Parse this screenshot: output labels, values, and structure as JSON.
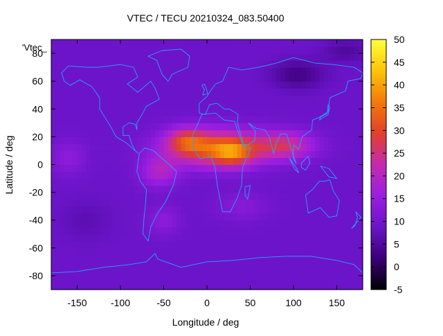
{
  "chart_data": {
    "type": "heatmap",
    "title": "VTEC / TECU 20210324_083.50400",
    "xlabel": "Longitude / deg",
    "ylabel": "Latitude / deg",
    "overlay_label": "'Vtec_",
    "xlim": [
      -180,
      180
    ],
    "ylim": [
      -90,
      90
    ],
    "xticks": [
      -150,
      -100,
      -50,
      0,
      50,
      100,
      150
    ],
    "yticks": [
      -80,
      -60,
      -40,
      -20,
      0,
      20,
      40,
      60,
      80
    ],
    "colorbar": {
      "range": [
        -5,
        50
      ],
      "ticks": [
        50,
        45,
        40,
        35,
        30,
        25,
        20,
        15,
        10,
        5,
        0,
        -5
      ],
      "palette": [
        "#000000",
        "#3a0078",
        "#6a14c8",
        "#9a1ee0",
        "#c42ab0",
        "#e0402a",
        "#f27a0a",
        "#fbc40a",
        "#ffff3c"
      ]
    },
    "coastline_color": "#2aa0ff",
    "features": [
      {
        "lon": 10,
        "lat": 12,
        "amp": 24,
        "slon": 55,
        "slat": 13
      },
      {
        "lon": -25,
        "lat": 18,
        "amp": 12,
        "slon": 22,
        "slat": 9
      },
      {
        "lon": 30,
        "lat": 8,
        "amp": 12,
        "slon": 22,
        "slat": 9
      },
      {
        "lon": 90,
        "lat": 14,
        "amp": 15,
        "slon": 35,
        "slat": 10
      },
      {
        "lon": -55,
        "lat": -5,
        "amp": 10,
        "slon": 22,
        "slat": 11
      },
      {
        "lon": -50,
        "lat": -40,
        "amp": 5,
        "slon": 18,
        "slat": 10
      },
      {
        "lon": -160,
        "lat": 5,
        "amp": 5,
        "slon": 20,
        "slat": 12
      },
      {
        "lon": 105,
        "lat": 65,
        "amp": -6,
        "slon": 30,
        "slat": 10
      },
      {
        "lon": 160,
        "lat": 82,
        "amp": -4,
        "slon": 25,
        "slat": 8
      },
      {
        "lon": 40,
        "lat": -30,
        "amp": 4,
        "slon": 30,
        "slat": 10
      },
      {
        "lon": -140,
        "lat": -40,
        "amp": -2,
        "slon": 30,
        "slat": 15
      }
    ],
    "background_level": 9,
    "coastlines": [
      {
        "name": "north-america",
        "pts": [
          [
            -168,
            66
          ],
          [
            -160,
            71
          ],
          [
            -140,
            70
          ],
          [
            -125,
            70
          ],
          [
            -100,
            72
          ],
          [
            -85,
            70
          ],
          [
            -80,
            63
          ],
          [
            -92,
            58
          ],
          [
            -80,
            52
          ],
          [
            -65,
            60
          ],
          [
            -60,
            55
          ],
          [
            -55,
            47
          ],
          [
            -70,
            42
          ],
          [
            -76,
            35
          ],
          [
            -81,
            30
          ],
          [
            -81,
            25
          ],
          [
            -83,
            29
          ],
          [
            -90,
            30
          ],
          [
            -97,
            27
          ],
          [
            -97,
            21
          ],
          [
            -90,
            21
          ],
          [
            -87,
            15
          ],
          [
            -83,
            10
          ],
          [
            -79,
            8
          ],
          [
            -85,
            11
          ],
          [
            -92,
            15
          ],
          [
            -105,
            20
          ],
          [
            -112,
            28
          ],
          [
            -117,
            33
          ],
          [
            -124,
            40
          ],
          [
            -124,
            48
          ],
          [
            -133,
            56
          ],
          [
            -147,
            61
          ],
          [
            -158,
            57
          ],
          [
            -165,
            60
          ],
          [
            -168,
            66
          ]
        ]
      },
      {
        "name": "greenland",
        "pts": [
          [
            -52,
            82
          ],
          [
            -30,
            83
          ],
          [
            -20,
            78
          ],
          [
            -22,
            70
          ],
          [
            -40,
            65
          ],
          [
            -45,
            60
          ],
          [
            -52,
            65
          ],
          [
            -58,
            75
          ],
          [
            -68,
            78
          ],
          [
            -52,
            82
          ]
        ]
      },
      {
        "name": "south-america",
        "pts": [
          [
            -78,
            8
          ],
          [
            -72,
            12
          ],
          [
            -62,
            10
          ],
          [
            -51,
            4
          ],
          [
            -35,
            -5
          ],
          [
            -39,
            -15
          ],
          [
            -48,
            -27
          ],
          [
            -58,
            -36
          ],
          [
            -65,
            -45
          ],
          [
            -68,
            -55
          ],
          [
            -74,
            -50
          ],
          [
            -73,
            -40
          ],
          [
            -71,
            -28
          ],
          [
            -70,
            -18
          ],
          [
            -77,
            -12
          ],
          [
            -81,
            -5
          ],
          [
            -80,
            1
          ],
          [
            -78,
            8
          ]
        ]
      },
      {
        "name": "africa",
        "pts": [
          [
            -17,
            21
          ],
          [
            -10,
            30
          ],
          [
            -6,
            36
          ],
          [
            10,
            37
          ],
          [
            20,
            32
          ],
          [
            32,
            31
          ],
          [
            35,
            25
          ],
          [
            43,
            12
          ],
          [
            51,
            12
          ],
          [
            41,
            -2
          ],
          [
            40,
            -15
          ],
          [
            35,
            -24
          ],
          [
            27,
            -34
          ],
          [
            18,
            -34
          ],
          [
            12,
            -15
          ],
          [
            9,
            -1
          ],
          [
            4,
            6
          ],
          [
            -8,
            4
          ],
          [
            -15,
            11
          ],
          [
            -17,
            21
          ]
        ]
      },
      {
        "name": "europe-asia",
        "pts": [
          [
            -9,
            37
          ],
          [
            -9,
            44
          ],
          [
            0,
            49
          ],
          [
            5,
            54
          ],
          [
            10,
            58
          ],
          [
            18,
            60
          ],
          [
            25,
            70
          ],
          [
            40,
            68
          ],
          [
            60,
            70
          ],
          [
            80,
            73
          ],
          [
            100,
            77
          ],
          [
            125,
            73
          ],
          [
            145,
            72
          ],
          [
            170,
            70
          ],
          [
            180,
            66
          ],
          [
            178,
            62
          ],
          [
            163,
            60
          ],
          [
            160,
            53
          ],
          [
            142,
            48
          ],
          [
            140,
            38
          ],
          [
            130,
            34
          ],
          [
            122,
            32
          ],
          [
            121,
            25
          ],
          [
            110,
            20
          ],
          [
            106,
            11
          ],
          [
            100,
            14
          ],
          [
            100,
            4
          ],
          [
            103,
            1
          ],
          [
            98,
            10
          ],
          [
            92,
            22
          ],
          [
            85,
            22
          ],
          [
            80,
            15
          ],
          [
            77,
            8
          ],
          [
            72,
            20
          ],
          [
            67,
            25
          ],
          [
            57,
            26
          ],
          [
            52,
            28
          ],
          [
            48,
            30
          ],
          [
            56,
            24
          ],
          [
            55,
            17
          ],
          [
            43,
            13
          ],
          [
            35,
            30
          ],
          [
            36,
            36
          ],
          [
            26,
            40
          ],
          [
            20,
            40
          ],
          [
            12,
            44
          ],
          [
            10,
            44
          ],
          [
            3,
            43
          ],
          [
            -2,
            36
          ],
          [
            -9,
            37
          ]
        ]
      },
      {
        "name": "australia",
        "pts": [
          [
            114,
            -22
          ],
          [
            122,
            -18
          ],
          [
            130,
            -12
          ],
          [
            136,
            -12
          ],
          [
            142,
            -11
          ],
          [
            146,
            -19
          ],
          [
            153,
            -26
          ],
          [
            150,
            -37
          ],
          [
            141,
            -38
          ],
          [
            131,
            -31
          ],
          [
            117,
            -35
          ],
          [
            114,
            -22
          ]
        ]
      },
      {
        "name": "uk",
        "pts": [
          [
            -5,
            50
          ],
          [
            1,
            51
          ],
          [
            -1,
            55
          ],
          [
            -3,
            58
          ],
          [
            -6,
            57
          ],
          [
            -3,
            54
          ],
          [
            -5,
            50
          ]
        ]
      },
      {
        "name": "japan",
        "pts": [
          [
            130,
            32
          ],
          [
            135,
            34
          ],
          [
            140,
            36
          ],
          [
            142,
            41
          ],
          [
            140,
            43
          ],
          [
            139,
            37
          ],
          [
            131,
            34
          ],
          [
            130,
            32
          ]
        ]
      },
      {
        "name": "madagascar",
        "pts": [
          [
            44,
            -16
          ],
          [
            50,
            -15
          ],
          [
            47,
            -25
          ],
          [
            44,
            -22
          ],
          [
            44,
            -16
          ]
        ]
      },
      {
        "name": "borneo",
        "pts": [
          [
            109,
            1
          ],
          [
            117,
            6
          ],
          [
            119,
            1
          ],
          [
            114,
            -4
          ],
          [
            109,
            -2
          ],
          [
            109,
            1
          ]
        ]
      },
      {
        "name": "sumatra",
        "pts": [
          [
            95,
            5
          ],
          [
            104,
            -3
          ],
          [
            106,
            -6
          ],
          [
            101,
            -3
          ],
          [
            95,
            5
          ]
        ]
      },
      {
        "name": "new-guinea",
        "pts": [
          [
            131,
            -1
          ],
          [
            141,
            -3
          ],
          [
            150,
            -10
          ],
          [
            141,
            -9
          ],
          [
            136,
            -5
          ],
          [
            131,
            -1
          ]
        ]
      },
      {
        "name": "new-zealand",
        "pts": [
          [
            172,
            -34
          ],
          [
            178,
            -38
          ],
          [
            174,
            -41
          ],
          [
            167,
            -46
          ],
          [
            171,
            -44
          ],
          [
            174,
            -38
          ],
          [
            172,
            -34
          ]
        ]
      },
      {
        "name": "antarctica",
        "pts": [
          [
            -180,
            -78
          ],
          [
            -150,
            -77
          ],
          [
            -120,
            -74
          ],
          [
            -90,
            -72
          ],
          [
            -70,
            -70
          ],
          [
            -60,
            -64
          ],
          [
            -57,
            -68
          ],
          [
            -30,
            -74
          ],
          [
            0,
            -70
          ],
          [
            30,
            -69
          ],
          [
            60,
            -67
          ],
          [
            90,
            -66
          ],
          [
            120,
            -66
          ],
          [
            150,
            -69
          ],
          [
            170,
            -72
          ],
          [
            180,
            -78
          ]
        ]
      }
    ]
  }
}
